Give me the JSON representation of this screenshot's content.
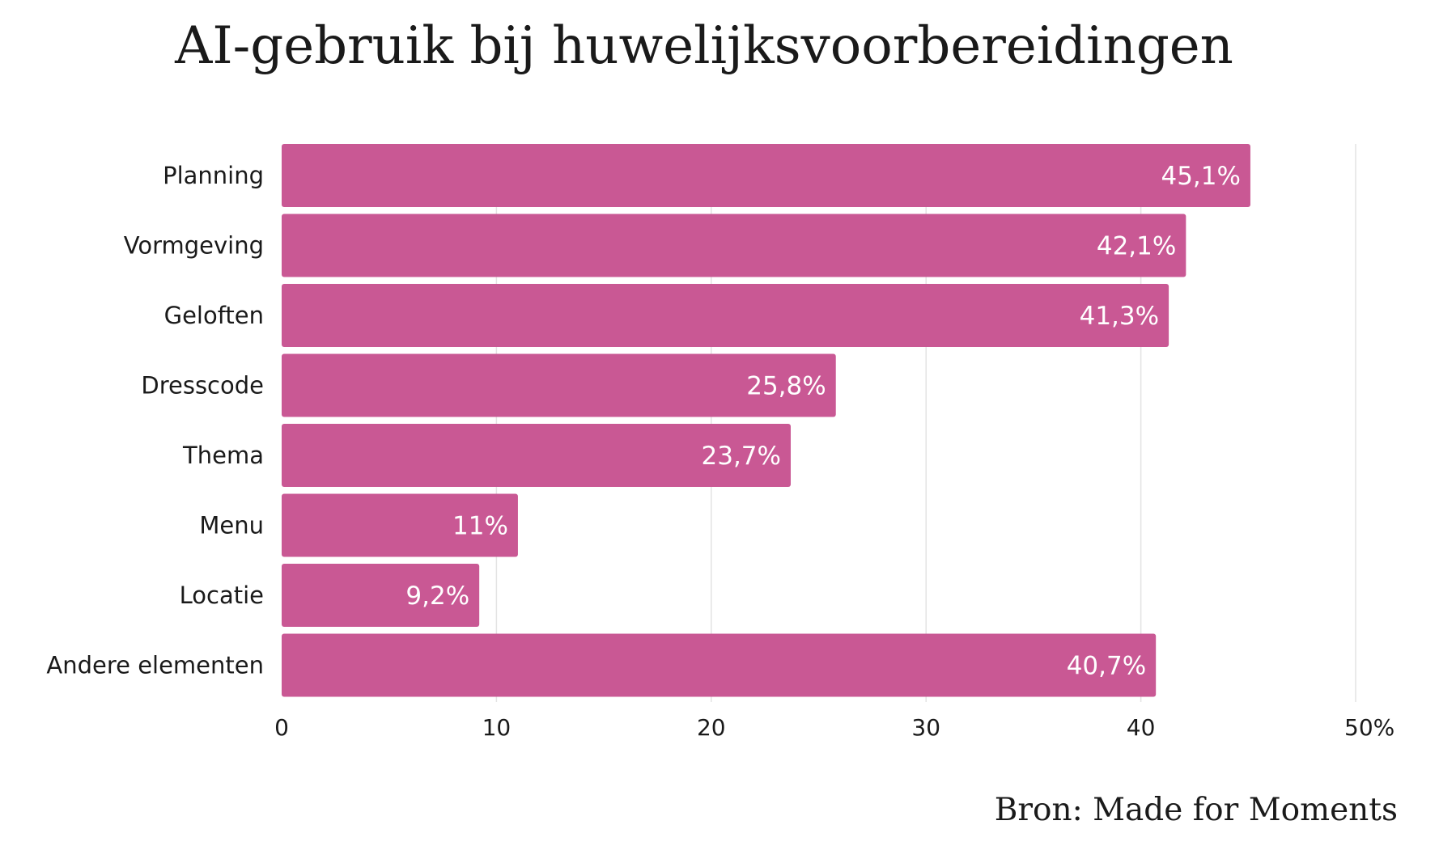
{
  "title": "AI-gebruik bij huwelijksvoorbereidingen",
  "source": "Bron: Made for Moments",
  "colors": {
    "bar": "#c95894",
    "value_text": "#ffffff",
    "grid": "#e3e3e3",
    "text": "#1a1a1a"
  },
  "chart_data": {
    "type": "bar",
    "orientation": "horizontal",
    "title": "AI-gebruik bij huwelijksvoorbereidingen",
    "categories": [
      "Planning",
      "Vormgeving",
      "Geloften",
      "Dresscode",
      "Thema",
      "Menu",
      "Locatie",
      "Andere elementen"
    ],
    "values": [
      45.1,
      42.1,
      41.3,
      25.8,
      23.7,
      11,
      9.2,
      40.7
    ],
    "value_labels": [
      "45,1%",
      "42,1%",
      "41,3%",
      "25,8%",
      "23,7%",
      "11%",
      "9,2%",
      "40,7%"
    ],
    "x_ticks": [
      0,
      10,
      20,
      30,
      40,
      50
    ],
    "x_tick_labels": [
      "0",
      "10",
      "20",
      "30",
      "40",
      "50%"
    ],
    "xlim": [
      0,
      50
    ],
    "grid": true,
    "legend": "none",
    "xlabel": "",
    "ylabel": ""
  }
}
